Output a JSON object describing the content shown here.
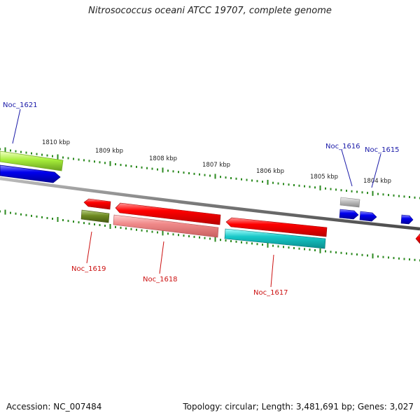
{
  "title": "Nitrosococcus oceani ATCC 19707, complete genome",
  "accession": "Accession: NC_007484",
  "summary": "Topology: circular; Length: 3,481,691 bp; Genes: 3,027",
  "colors": {
    "backbone": "#7f7f7f",
    "tick": "#2b8a1f",
    "label_forward": "#1a1aa8",
    "label_reverse": "#cc1111"
  },
  "scale": {
    "kbp_labels": [
      "1810 kbp",
      "1809 kbp",
      "1808 kbp",
      "1807 kbp",
      "1806 kbp",
      "1805 kbp",
      "1804 kbp"
    ]
  },
  "genes": {
    "forward": [
      {
        "name": "Noc_1621",
        "labeled": true
      },
      {
        "name": "Noc_1616",
        "labeled": true
      },
      {
        "name": "Noc_1615",
        "labeled": true
      }
    ],
    "reverse": [
      {
        "name": "Noc_1619",
        "labeled": true
      },
      {
        "name": "Noc_1618",
        "labeled": true
      },
      {
        "name": "Noc_1617",
        "labeled": true
      }
    ]
  }
}
